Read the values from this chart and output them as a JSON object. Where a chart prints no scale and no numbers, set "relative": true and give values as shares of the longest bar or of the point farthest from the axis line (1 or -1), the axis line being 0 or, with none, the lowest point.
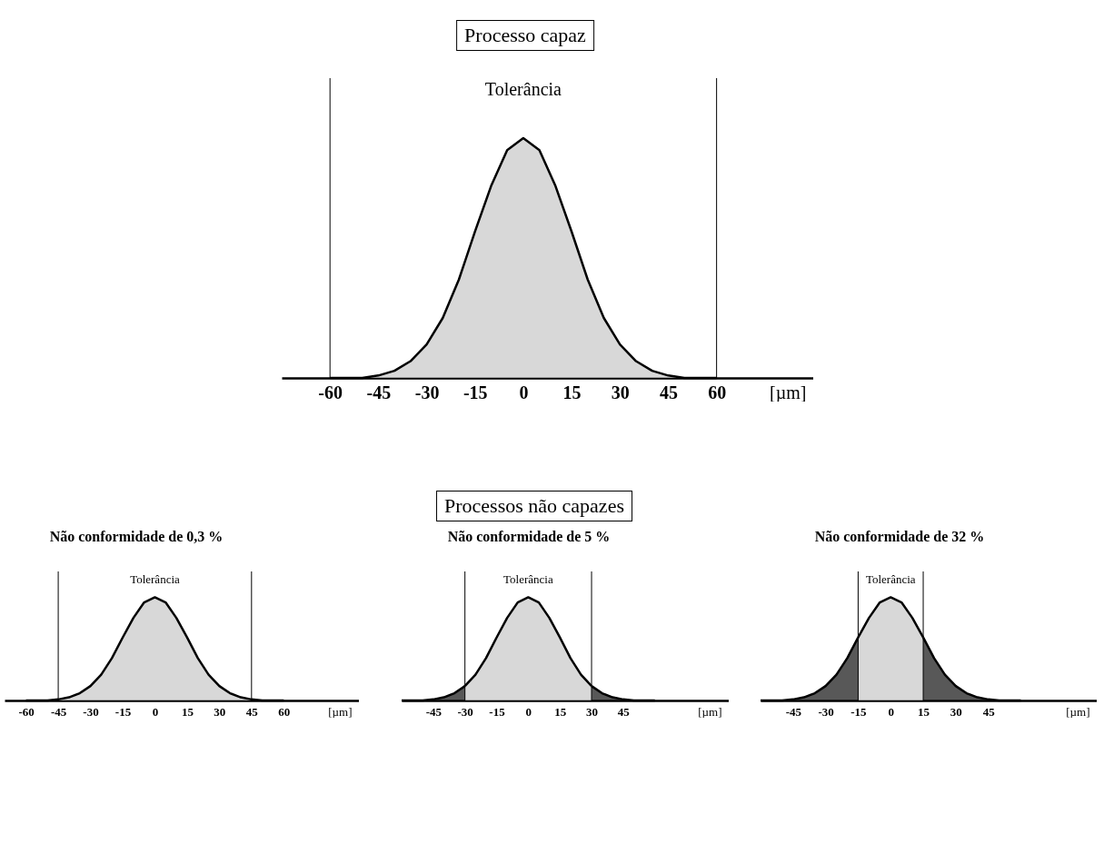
{
  "chart_data": [
    {
      "type": "area",
      "title": "Processo capaz",
      "xlabel": "[µm]",
      "relative": true,
      "x": [
        -60,
        -55,
        -50,
        -45,
        -40,
        -35,
        -30,
        -25,
        -20,
        -15,
        -10,
        -5,
        0,
        5,
        10,
        15,
        20,
        25,
        30,
        35,
        40,
        45,
        50,
        55,
        60
      ],
      "xlim": [
        -75,
        90
      ],
      "xticks": [
        -60,
        -45,
        -30,
        -15,
        0,
        15,
        30,
        45,
        60
      ],
      "series": [
        {
          "color": "#c8c8c8",
          "values": [
            0,
            0,
            0,
            0.01,
            0.03,
            0.07,
            0.14,
            0.25,
            0.41,
            0.61,
            0.8,
            0.95,
            1,
            0.95,
            0.8,
            0.61,
            0.41,
            0.25,
            0.14,
            0.07,
            0.03,
            0.01,
            0,
            0,
            0
          ]
        }
      ],
      "ref_lines": [
        {
          "axis": "x",
          "value": -60,
          "label": "Tolerância"
        },
        {
          "axis": "x",
          "value": 60
        }
      ]
    },
    {
      "type": "other",
      "title": "Processos não capazes"
    },
    {
      "type": "area",
      "title": "Não conformidade de 0,3 %",
      "xlabel": "[µm]",
      "relative": true,
      "x": [
        -60,
        -55,
        -50,
        -45,
        -40,
        -35,
        -30,
        -25,
        -20,
        -15,
        -10,
        -5,
        0,
        5,
        10,
        15,
        20,
        25,
        30,
        35,
        40,
        45,
        50,
        55,
        60
      ],
      "xlim": [
        -70,
        95
      ],
      "xticks": [
        -60,
        -45,
        -30,
        -15,
        0,
        15,
        30,
        45,
        60
      ],
      "series": [
        {
          "color": "#c8c8c8",
          "values": [
            0,
            0,
            0,
            0.01,
            0.03,
            0.07,
            0.14,
            0.25,
            0.41,
            0.61,
            0.8,
            0.95,
            1,
            0.95,
            0.8,
            0.61,
            0.41,
            0.25,
            0.14,
            0.07,
            0.03,
            0.01,
            0,
            0,
            0
          ]
        }
      ],
      "ref_lines": [
        {
          "axis": "x",
          "value": -45,
          "label": "Tolerância"
        },
        {
          "axis": "x",
          "value": 45
        }
      ]
    },
    {
      "type": "area",
      "title": "Não conformidade de 5 %",
      "xlabel": "[µm]",
      "relative": true,
      "x": [
        -60,
        -55,
        -50,
        -45,
        -40,
        -35,
        -30,
        -25,
        -20,
        -15,
        -10,
        -5,
        0,
        5,
        10,
        15,
        20,
        25,
        30,
        35,
        40,
        45,
        50,
        55,
        60
      ],
      "xlim": [
        -60,
        95
      ],
      "xticks": [
        -45,
        -30,
        -15,
        0,
        15,
        30,
        45
      ],
      "series": [
        {
          "color": "#c8c8c8",
          "values": [
            null,
            null,
            null,
            null,
            null,
            null,
            0.14,
            0.25,
            0.41,
            0.61,
            0.8,
            0.95,
            1,
            0.95,
            0.8,
            0.61,
            0.41,
            0.25,
            0.14,
            null,
            null,
            null,
            null,
            null,
            null
          ]
        },
        {
          "color": "#111111",
          "values": [
            0,
            0,
            0,
            0.01,
            0.03,
            0.07,
            0.14,
            null,
            null,
            null,
            null,
            null,
            null,
            null,
            null,
            null,
            null,
            null,
            0.14,
            0.07,
            0.03,
            0.01,
            0,
            0,
            0
          ]
        }
      ],
      "ref_lines": [
        {
          "axis": "x",
          "value": -30,
          "label": "Tolerância"
        },
        {
          "axis": "x",
          "value": 30
        }
      ]
    },
    {
      "type": "area",
      "title": "Não conformidade de 32 %",
      "xlabel": "[µm]",
      "relative": true,
      "x": [
        -60,
        -55,
        -50,
        -45,
        -40,
        -35,
        -30,
        -25,
        -20,
        -15,
        -10,
        -5,
        0,
        5,
        10,
        15,
        20,
        25,
        30,
        35,
        40,
        45,
        50,
        55,
        60
      ],
      "xlim": [
        -60,
        95
      ],
      "xticks": [
        -45,
        -30,
        -15,
        0,
        15,
        30,
        45
      ],
      "series": [
        {
          "color": "#c8c8c8",
          "values": [
            null,
            null,
            null,
            null,
            null,
            null,
            null,
            null,
            null,
            0.61,
            0.8,
            0.95,
            1,
            0.95,
            0.8,
            0.61,
            null,
            null,
            null,
            null,
            null,
            null,
            null,
            null,
            null
          ]
        },
        {
          "color": "#111111",
          "values": [
            0,
            0,
            0,
            0.01,
            0.03,
            0.07,
            0.14,
            0.25,
            0.41,
            0.61,
            null,
            null,
            null,
            null,
            null,
            0.61,
            0.41,
            0.25,
            0.14,
            0.07,
            0.03,
            0.01,
            0,
            0,
            0
          ]
        }
      ],
      "ref_lines": [
        {
          "axis": "x",
          "value": -15,
          "label": "Tolerância"
        },
        {
          "axis": "x",
          "value": 15
        }
      ]
    }
  ]
}
